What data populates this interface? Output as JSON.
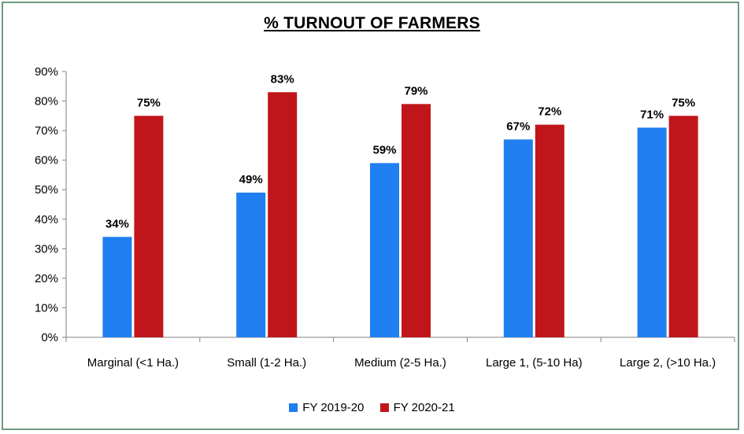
{
  "chart_data": {
    "type": "bar",
    "title": "% TURNOUT OF FARMERS",
    "categories": [
      "Marginal (<1 Ha.)",
      "Small (1-2 Ha.)",
      "Medium (2-5 Ha.)",
      "Large 1, (5-10 Ha)",
      "Large 2, (>10 Ha.)"
    ],
    "series": [
      {
        "name": "FY 2019-20",
        "color": "#1f7ff0",
        "values": [
          34,
          49,
          59,
          67,
          71
        ],
        "labels": [
          "34%",
          "49%",
          "59%",
          "67%",
          "71%"
        ]
      },
      {
        "name": "FY 2020-21",
        "color": "#c0161b",
        "values": [
          75,
          83,
          79,
          72,
          75
        ],
        "labels": [
          "75%",
          "83%",
          "79%",
          "72%",
          "75%"
        ]
      }
    ],
    "ylim": [
      0,
      90
    ],
    "yticks": [
      0,
      10,
      20,
      30,
      40,
      50,
      60,
      70,
      80,
      90
    ],
    "ytick_labels": [
      "0%",
      "10%",
      "20%",
      "30%",
      "40%",
      "50%",
      "60%",
      "70%",
      "80%",
      "90%"
    ],
    "xlabel": "",
    "ylabel": "",
    "grid": false,
    "legend": "bottom"
  }
}
